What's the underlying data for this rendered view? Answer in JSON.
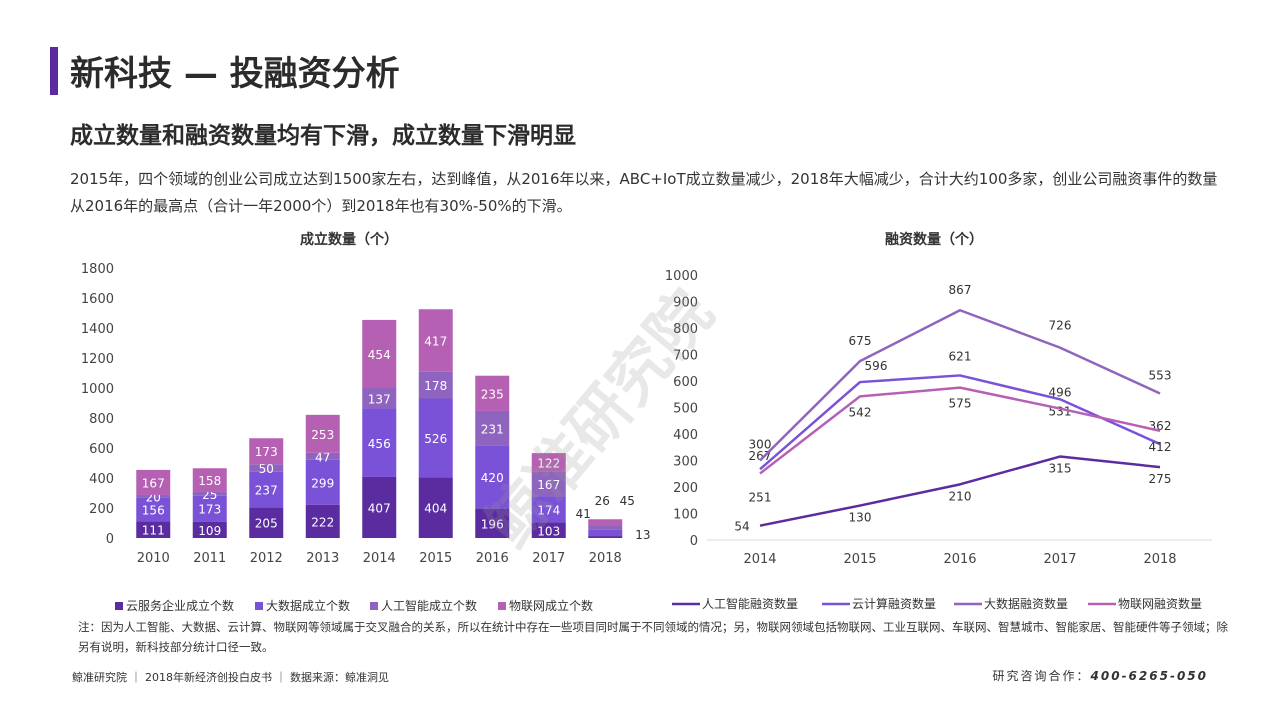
{
  "header": {
    "title": "新科技 — 投融资分析",
    "subtitle": "成立数量和融资数量均有下滑，成立数量下滑明显",
    "description": "2015年，四个领域的创业公司成立达到1500家左右，达到峰值，从2016年以来，ABC+IoT成立数量减少，2018年大幅减少，合计大约100多家，创业公司融资事件的数量从2016年的最高点（合计一年2000个）到2018年也有30%-50%的下滑。"
  },
  "watermark": "鲸准研究院",
  "chart_data": [
    {
      "type": "bar",
      "stacked": true,
      "title": "成立数量（个）",
      "categories": [
        "2010",
        "2011",
        "2012",
        "2013",
        "2014",
        "2015",
        "2016",
        "2017",
        "2018"
      ],
      "ylim": [
        0,
        1800
      ],
      "yticks": [
        0,
        200,
        400,
        600,
        800,
        1000,
        1200,
        1400,
        1600,
        1800
      ],
      "grid": false,
      "legend_position": "bottom",
      "series": [
        {
          "name": "云服务企业成立个数",
          "color": "#5b2ca0",
          "values": [
            111,
            109,
            205,
            222,
            407,
            404,
            196,
            103,
            13
          ]
        },
        {
          "name": "大数据成立个数",
          "color": "#7a52d8",
          "values": [
            156,
            173,
            237,
            299,
            456,
            526,
            420,
            174,
            41
          ]
        },
        {
          "name": "人工智能成立个数",
          "color": "#8f64bf",
          "values": [
            20,
            25,
            50,
            47,
            137,
            178,
            231,
            167,
            26
          ]
        },
        {
          "name": "物联网成立个数",
          "color": "#b660b4",
          "values": [
            167,
            158,
            173,
            253,
            454,
            417,
            235,
            122,
            45
          ]
        }
      ]
    },
    {
      "type": "line",
      "title": "融资数量（个）",
      "categories": [
        "2014",
        "2015",
        "2016",
        "2017",
        "2018"
      ],
      "ylim": [
        0,
        1000
      ],
      "yticks": [
        0,
        100,
        200,
        300,
        400,
        500,
        600,
        700,
        800,
        900,
        1000
      ],
      "grid": false,
      "legend_position": "bottom",
      "series": [
        {
          "name": "人工智能融资数量",
          "color": "#5b2ca0",
          "values": [
            54,
            130,
            210,
            315,
            275
          ]
        },
        {
          "name": "云计算融资数量",
          "color": "#7a52d8",
          "values": [
            267,
            596,
            621,
            531,
            362
          ]
        },
        {
          "name": "大数据融资数量",
          "color": "#8f64bf",
          "values": [
            300,
            675,
            867,
            726,
            553
          ]
        },
        {
          "name": "物联网融资数量",
          "color": "#b660b4",
          "values": [
            251,
            542,
            575,
            496,
            412
          ]
        }
      ]
    }
  ],
  "footer": {
    "note": "注：因为人工智能、大数据、云计算、物联网等领域属于交叉融合的关系，所以在统计中存在一些项目同时属于不同领域的情况；另，物联网领域包括物联网、工业互联网、车联网、智慧城市、智能家居、智能硬件等子领域；除另有说明，新科技部分统计口径一致。",
    "source": "鲸准研究院 ｜ 2018年新经济创投白皮书 ｜ 数据来源：鲸准洞见",
    "contact_label": "研究咨询合作：",
    "contact_phone": "400-6265-050"
  }
}
